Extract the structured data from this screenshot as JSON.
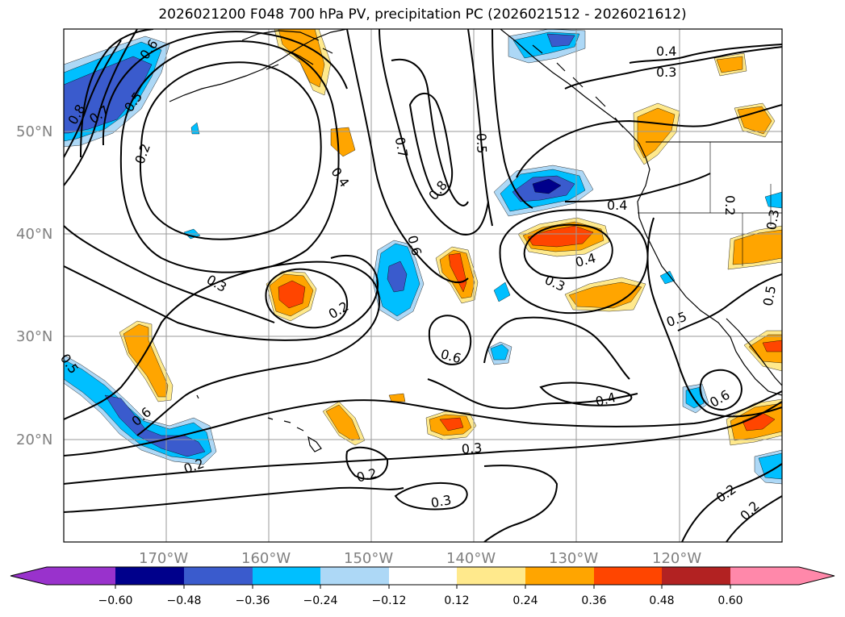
{
  "title": "2026021200 F048 700 hPa PV, precipitation PC (2026021512 - 2026021612)",
  "axes": {
    "lat_labels": [
      "50°N",
      "40°N",
      "30°N",
      "20°N"
    ],
    "lon_labels": [
      "170°W",
      "160°W",
      "150°W",
      "140°W",
      "130°W",
      "120°W"
    ],
    "label_color": "#808080"
  },
  "contour_labels": [
    "0.8",
    "0.7",
    "0.6",
    "0.5",
    "0.2",
    "0.4",
    "0.7",
    "0.5",
    "0.8",
    "0.6",
    "0.4",
    "0.3",
    "0.4",
    "0.3",
    "0.4",
    "0.2",
    "0.3",
    "0.3",
    "0.2",
    "0.6",
    "0.5",
    "0.5",
    "0.5",
    "0.6",
    "0.6",
    "0.4",
    "0.2",
    "0.3",
    "0.3",
    "0.2",
    "0.2",
    "0.2",
    "0.6",
    "0.2"
  ],
  "colorbar": {
    "colors": [
      "#9932cc",
      "#00008b",
      "#3a5bcd",
      "#00bfff",
      "#add8f6",
      "#ffffff",
      "#ffe98c",
      "#ffa500",
      "#ff4500",
      "#b22222",
      "#ff88aa"
    ],
    "tick_labels": [
      "−0.60",
      "−0.48",
      "−0.36",
      "−0.24",
      "−0.12",
      "0.12",
      "0.24",
      "0.36",
      "0.48",
      "0.60"
    ]
  },
  "palette": {
    "neg_light": "#add8f6",
    "neg_mid": "#00bfff",
    "neg_strong": "#3a5bcd",
    "neg_max": "#00008b",
    "pos_light": "#ffe98c",
    "pos_mid": "#ffa500",
    "pos_strong": "#ff4500"
  }
}
